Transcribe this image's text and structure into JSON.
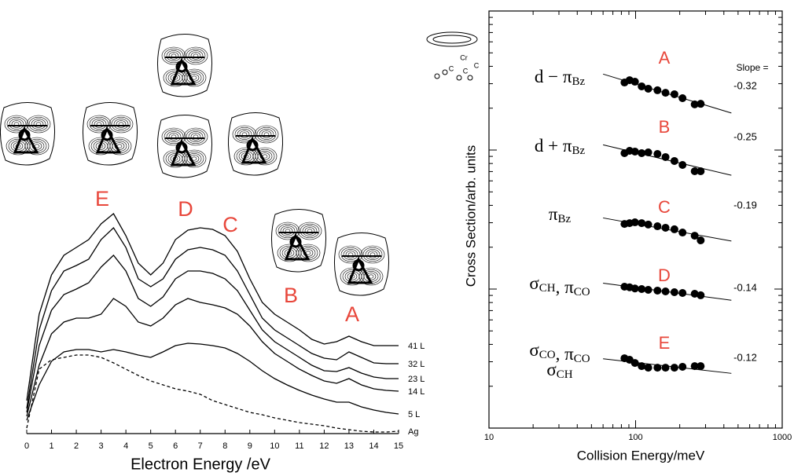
{
  "chart_data": [
    {
      "type": "line",
      "xlabel": "Electron Energy /eV",
      "xlim": [
        0,
        15
      ],
      "xticks": [
        0,
        1,
        2,
        3,
        4,
        5,
        6,
        7,
        8,
        9,
        10,
        11,
        12,
        13,
        14,
        15
      ],
      "ylim": [
        0,
        29.5
      ],
      "x": [
        0,
        0.5,
        1,
        1.5,
        2,
        2.5,
        3,
        3.5,
        4,
        4.5,
        5,
        5.5,
        6,
        6.5,
        7,
        7.5,
        8,
        8.5,
        9,
        9.5,
        10,
        10.5,
        11,
        11.5,
        12,
        12.5,
        13,
        13.5,
        14,
        14.5,
        15
      ],
      "series": [
        {
          "name": "41 L",
          "color": "#000000",
          "dashed": false,
          "values": [
            4.2,
            15.2,
            20.2,
            22.7,
            23.7,
            24.7,
            26.7,
            28.0,
            25.2,
            21.7,
            20.2,
            21.7,
            24.7,
            25.9,
            26.2,
            26.0,
            25.2,
            23.2,
            19.7,
            16.7,
            15.2,
            14.2,
            13.2,
            12.0,
            11.4,
            11.7,
            12.4,
            11.7,
            11.2,
            11.2,
            11.2
          ]
        },
        {
          "name": "32 L",
          "color": "#000000",
          "dashed": false,
          "values": [
            3.2,
            13.2,
            18.2,
            20.7,
            21.4,
            22.2,
            24.7,
            26.2,
            23.7,
            19.7,
            18.7,
            19.7,
            22.2,
            23.4,
            23.7,
            23.4,
            22.7,
            20.7,
            17.7,
            14.7,
            13.2,
            12.2,
            11.2,
            10.2,
            9.6,
            9.4,
            10.4,
            9.7,
            9.0,
            8.9,
            8.9
          ]
        },
        {
          "name": "23 L",
          "color": "#000000",
          "dashed": false,
          "values": [
            2.7,
            11.2,
            15.7,
            17.7,
            18.4,
            19.2,
            21.2,
            22.7,
            20.7,
            17.2,
            16.2,
            17.4,
            19.7,
            20.7,
            20.7,
            20.4,
            19.7,
            18.2,
            15.7,
            13.2,
            11.7,
            10.7,
            9.7,
            8.7,
            8.0,
            7.9,
            8.4,
            7.7,
            7.2,
            7.0,
            7.0
          ]
        },
        {
          "name": "14 L",
          "color": "#000000",
          "dashed": false,
          "values": [
            2.2,
            8.7,
            12.7,
            14.2,
            14.7,
            14.7,
            15.2,
            17.2,
            16.2,
            14.2,
            13.7,
            14.7,
            16.4,
            17.2,
            16.7,
            16.4,
            16.0,
            15.2,
            13.7,
            11.7,
            10.2,
            9.2,
            8.2,
            7.4,
            6.7,
            6.4,
            7.0,
            6.2,
            5.7,
            5.5,
            5.4
          ]
        },
        {
          "name": "5 L",
          "color": "#000000",
          "dashed": false,
          "values": [
            1.7,
            6.2,
            9.2,
            10.4,
            10.7,
            10.7,
            10.4,
            10.7,
            10.4,
            10.0,
            9.7,
            10.4,
            11.2,
            11.5,
            11.4,
            11.2,
            10.9,
            10.2,
            9.2,
            8.0,
            7.0,
            6.2,
            5.5,
            4.9,
            4.4,
            4.0,
            4.0,
            3.4,
            3.0,
            2.7,
            2.5
          ]
        },
        {
          "name": "Ag",
          "color": "#000000",
          "dashed": true,
          "values": [
            0.7,
            8.2,
            9.4,
            9.7,
            10.0,
            10.0,
            9.7,
            9.0,
            8.2,
            7.4,
            6.7,
            6.2,
            5.7,
            5.4,
            5.0,
            4.2,
            3.7,
            3.2,
            2.7,
            2.4,
            2.0,
            1.7,
            1.4,
            1.2,
            1.0,
            0.7,
            0.5,
            0.3,
            0.2,
            0.2,
            0.3
          ]
        }
      ],
      "peak_labels": [
        "E",
        "D",
        "C",
        "B",
        "A"
      ],
      "peak_label_color": "#e8473b"
    },
    {
      "type": "scatter",
      "xlabel": "Collision Energy/meV",
      "ylabel": "Cross Section/arb. units",
      "log_x": true,
      "log_y": true,
      "xlim": [
        10,
        1000
      ],
      "xticks": [
        10,
        100,
        1000
      ],
      "ylim": [
        1,
        1000
      ],
      "yticks": [
        1,
        10,
        100,
        1000
      ],
      "x": [
        84,
        91,
        99,
        110,
        122,
        141,
        160,
        184,
        209,
        253,
        278
      ],
      "slope_label": "Slope =",
      "molecule_labels": [
        "Cr",
        "C",
        "C",
        "C"
      ],
      "series": [
        {
          "name": "A",
          "color": "#000000",
          "label_color": "#e8473b",
          "slope": -0.32,
          "label_lines": [
            [
              {
                "text": "d − π",
                "sub": "Bz"
              }
            ]
          ],
          "values": [
            306,
            318,
            310,
            287,
            276,
            269,
            258,
            252,
            236,
            213,
            215
          ]
        },
        {
          "name": "B",
          "color": "#000000",
          "label_color": "#e8473b",
          "slope": -0.25,
          "label_lines": [
            [
              {
                "text": "d + π",
                "sub": "Bz"
              }
            ]
          ],
          "values": [
            94.9,
            98.7,
            97.5,
            94.9,
            96.2,
            93.7,
            89.0,
            83.4,
            78.1,
            70.4,
            70.4
          ]
        },
        {
          "name": "C",
          "color": "#000000",
          "label_color": "#e8473b",
          "slope": -0.19,
          "label_lines": [
            [
              {
                "text": "π",
                "sub": "Bz"
              }
            ]
          ],
          "values": [
            29.4,
            29.8,
            30.2,
            29.8,
            29.1,
            28.3,
            27.6,
            26.9,
            25.5,
            24.2,
            22.4
          ]
        },
        {
          "name": "D",
          "color": "#000000",
          "label_color": "#e8473b",
          "slope": -0.14,
          "label_lines": [
            [
              {
                "text": "σ",
                "sub": "CH"
              },
              {
                "text": ", π",
                "sub": "CO"
              }
            ]
          ],
          "values": [
            10.4,
            10.3,
            10.1,
            10,
            9.87,
            9.75,
            9.62,
            9.49,
            9.37,
            9.25,
            9.02
          ]
        },
        {
          "name": "E",
          "color": "#000000",
          "label_color": "#e8473b",
          "slope": -0.12,
          "label_lines": [
            [
              {
                "text": "σ",
                "sub": "CO"
              },
              {
                "text": ", π",
                "sub": "CO"
              }
            ],
            [
              {
                "text": "σ",
                "sub": "CH"
              }
            ]
          ],
          "values": [
            3.18,
            3.1,
            2.94,
            2.79,
            2.72,
            2.72,
            2.72,
            2.72,
            2.76,
            2.79,
            2.79
          ]
        }
      ]
    }
  ]
}
